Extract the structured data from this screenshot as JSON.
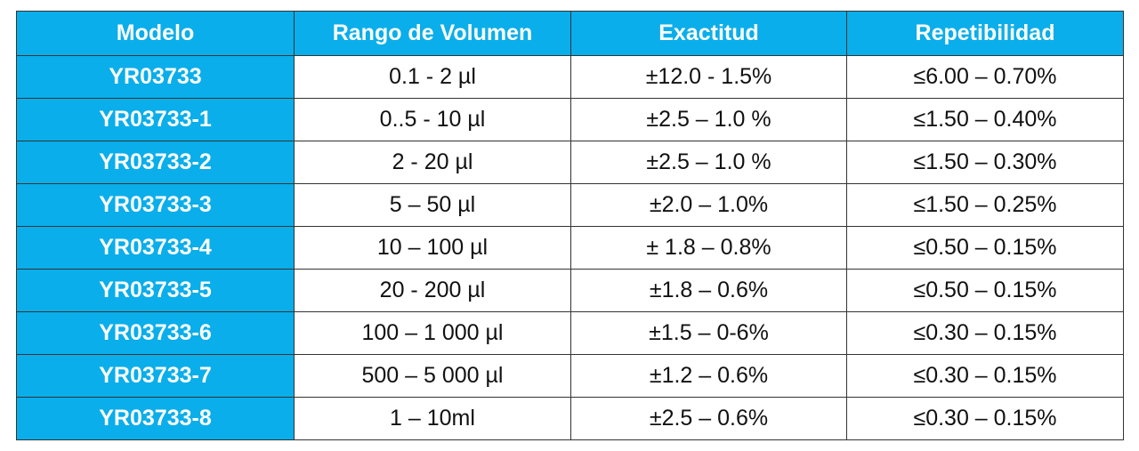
{
  "table": {
    "header": [
      "Modelo",
      "Rango de Volumen",
      "Exactitud",
      "Repetibilidad"
    ],
    "rows": [
      [
        "YR03733",
        "0.1 - 2 µl",
        "±12.0 - 1.5%",
        "≤6.00 – 0.70%"
      ],
      [
        "YR03733-1",
        "0..5 - 10 µl",
        "±2.5 – 1.0 %",
        "≤1.50 – 0.40%"
      ],
      [
        "YR03733-2",
        "2 - 20 µl",
        "±2.5 – 1.0 %",
        "≤1.50 – 0.30%"
      ],
      [
        "YR03733-3",
        "5 – 50 µl",
        "±2.0 – 1.0%",
        "≤1.50 – 0.25%"
      ],
      [
        "YR03733-4",
        "10 – 100 µl",
        "± 1.8 – 0.8%",
        "≤0.50 – 0.15%"
      ],
      [
        "YR03733-5",
        "20 - 200 µl",
        "±1.8 – 0.6%",
        "≤0.50 – 0.15%"
      ],
      [
        "YR03733-6",
        "100 – 1 000 µl",
        "±1.5 – 0-6%",
        "≤0.30 – 0.15%"
      ],
      [
        "YR03733-7",
        "500 – 5 000 µl",
        "±1.2 – 0.6%",
        "≤0.30 – 0.15%"
      ],
      [
        "YR03733-8",
        "1 – 10ml",
        "±2.5 – 0.6%",
        "≤0.30 – 0.15%"
      ]
    ]
  }
}
